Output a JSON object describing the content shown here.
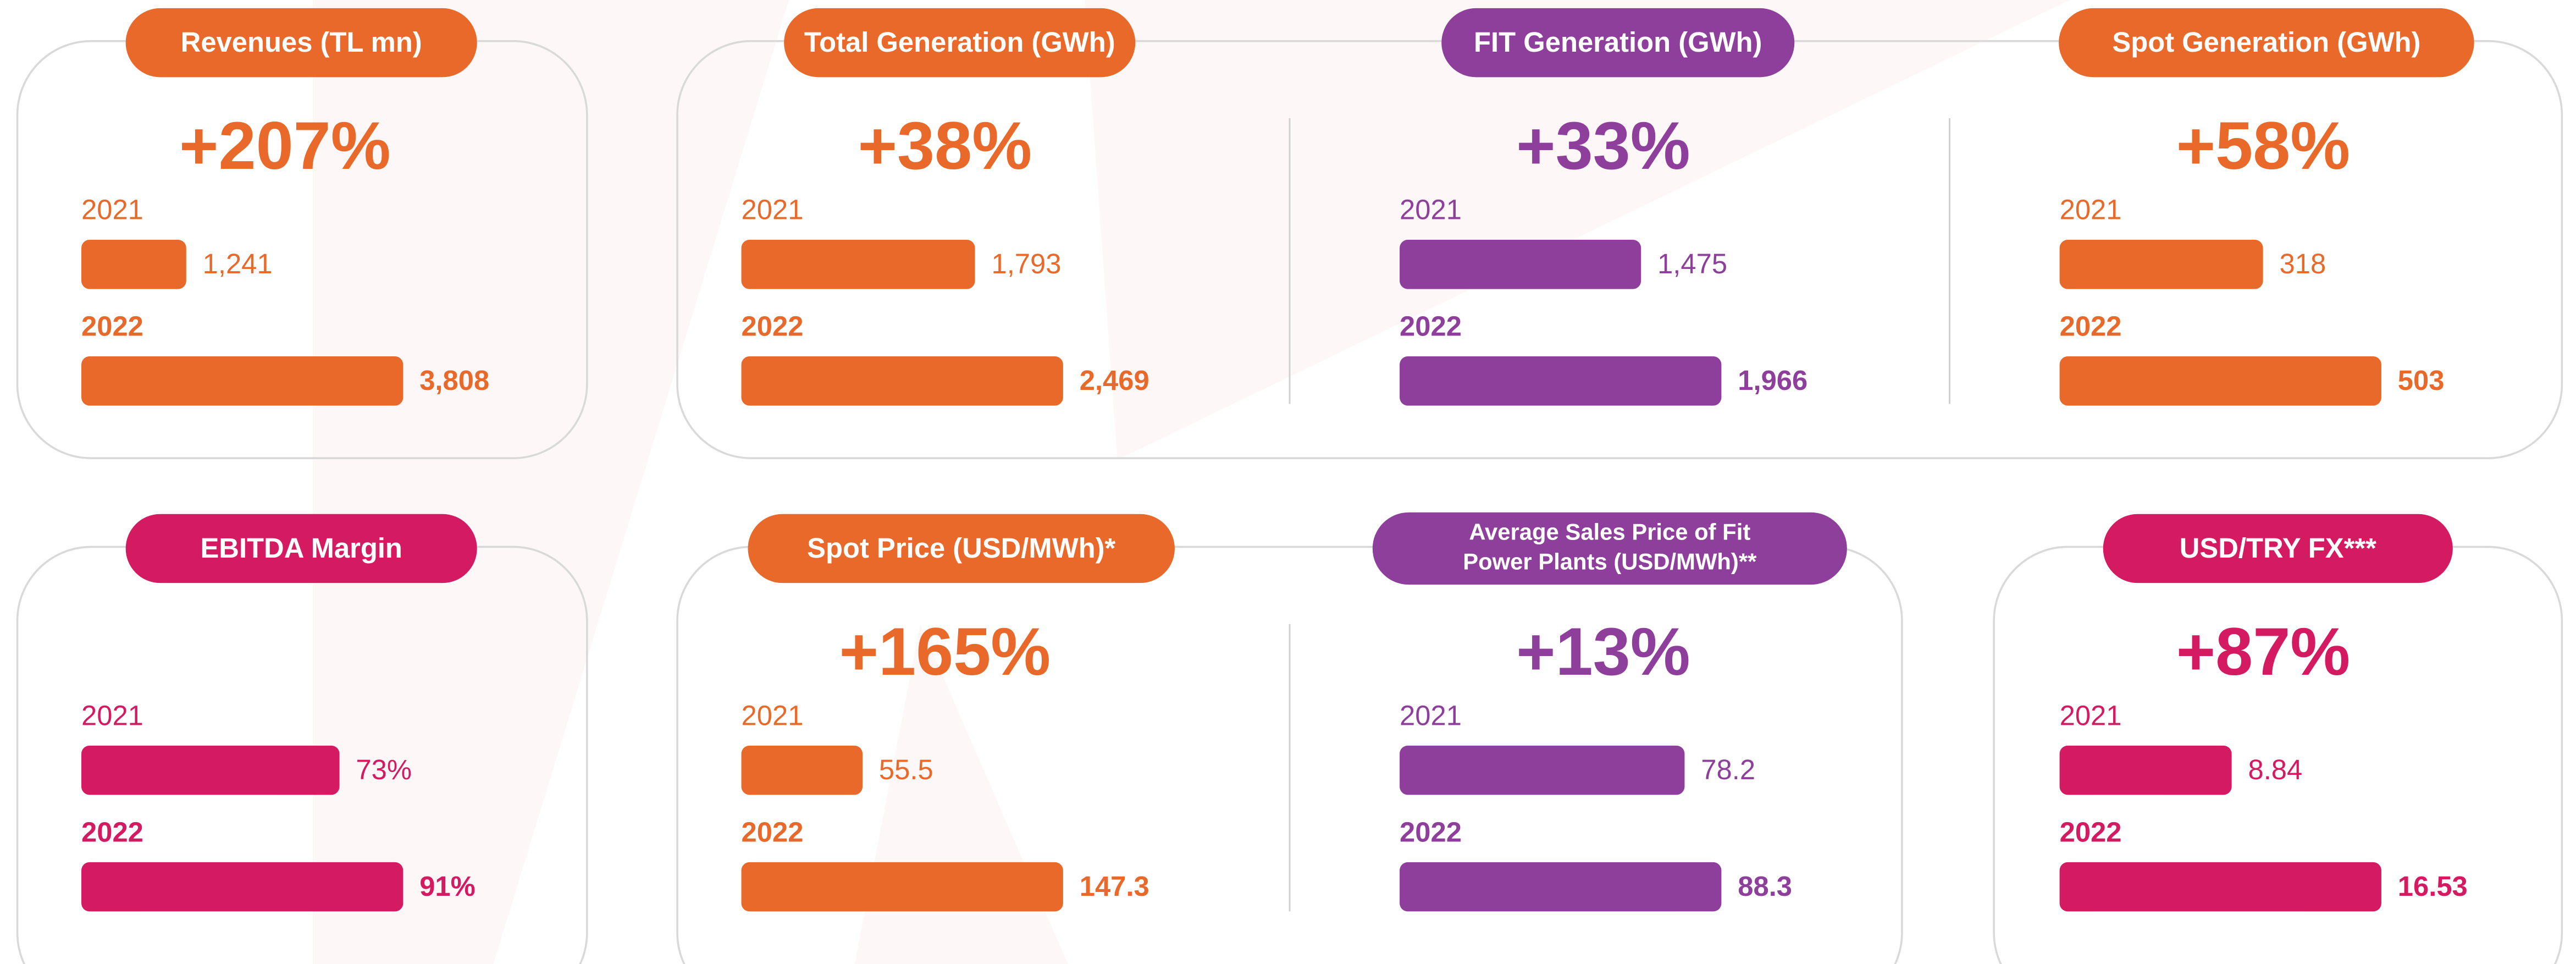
{
  "chart_data": [
    {
      "type": "bar",
      "title": "Revenues (TL mn)",
      "annotation": "+207%",
      "categories": [
        "2021",
        "2022"
      ],
      "values": [
        1241,
        3808
      ],
      "value_labels": [
        "1,241",
        "3,808"
      ],
      "color": "#e8692a"
    },
    {
      "type": "bar",
      "title": "Total Generation (GWh)",
      "annotation": "+38%",
      "categories": [
        "2021",
        "2022"
      ],
      "values": [
        1793,
        2469
      ],
      "value_labels": [
        "1,793",
        "2,469"
      ],
      "color": "#e8692a"
    },
    {
      "type": "bar",
      "title": "FIT Generation (GWh)",
      "annotation": "+33%",
      "categories": [
        "2021",
        "2022"
      ],
      "values": [
        1475,
        1966
      ],
      "value_labels": [
        "1,475",
        "1,966"
      ],
      "color": "#8e3f9b"
    },
    {
      "type": "bar",
      "title": "Spot Generation (GWh)",
      "annotation": "+58%",
      "categories": [
        "2021",
        "2022"
      ],
      "values": [
        318,
        503
      ],
      "color": "#e8692a"
    },
    {
      "type": "bar",
      "title": "EBITDA Margin",
      "categories": [
        "2021",
        "2022"
      ],
      "values": [
        73,
        91
      ],
      "value_labels": [
        "73%",
        "91%"
      ],
      "color": "#d41b62"
    },
    {
      "type": "bar",
      "title": "Spot Price (USD/MWh)*",
      "annotation": "+165%",
      "categories": [
        "2021",
        "2022"
      ],
      "values": [
        55.5,
        147.3
      ],
      "color": "#e8692a"
    },
    {
      "type": "bar",
      "title": [
        "Average Sales Price of Fit",
        "Power Plants (USD/MWh)**"
      ],
      "annotation": "+13%",
      "categories": [
        "2021",
        "2022"
      ],
      "values": [
        78.2,
        88.3
      ],
      "color": "#8e3f9b"
    },
    {
      "type": "bar",
      "title": "USD/TRY FX***",
      "annotation": "+87%",
      "categories": [
        "2021",
        "2022"
      ],
      "values": [
        8.84,
        16.53
      ],
      "color": "#d41b62"
    }
  ]
}
